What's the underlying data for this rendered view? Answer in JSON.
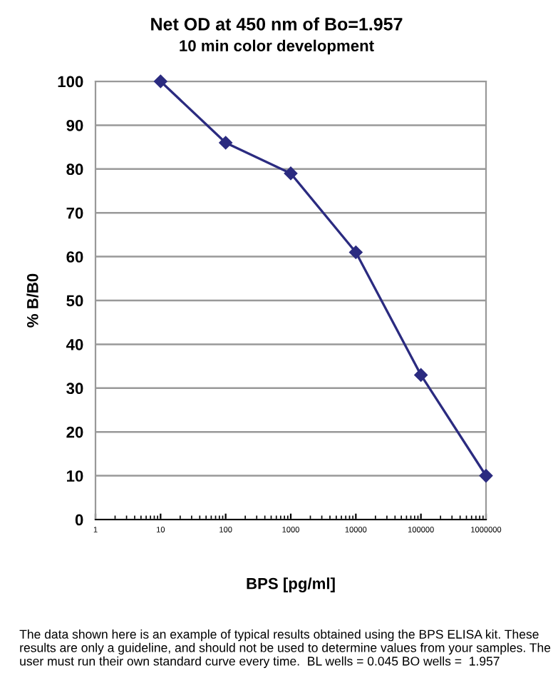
{
  "chart_data": {
    "type": "line",
    "title": "Net OD at 450 nm of Bo=1.957",
    "subtitle": "10 min color development",
    "xlabel": "BPS [pg/ml]",
    "ylabel": "% B/B0",
    "x": [
      10,
      100,
      1000,
      10000,
      100000,
      1000000
    ],
    "series": [
      {
        "color": "#2b2b80",
        "values": [
          100,
          86,
          79,
          61,
          33,
          10
        ]
      }
    ],
    "log": "x",
    "xlim": [
      1,
      1000000
    ],
    "xticks": [
      1,
      10,
      100,
      1000,
      10000,
      100000,
      1000000
    ],
    "ylim": [
      0,
      100
    ],
    "yticks": [
      0,
      10,
      20,
      30,
      40,
      50,
      60,
      70,
      80,
      90,
      100
    ],
    "grid": "y",
    "marker": "diamond",
    "line_style": "solid",
    "annotations": [
      "The data shown here is an example of typical results obtained using the BPS ELISA kit. These results are only a guideline, and should not be used to determine values from your samples. The user must run their own standard curve every time.  BL wells = 0.045 BO wells =  1.957"
    ]
  }
}
